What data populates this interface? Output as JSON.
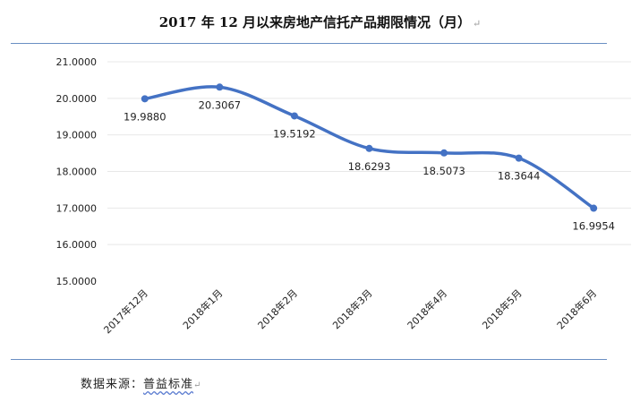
{
  "page": {
    "title": "2017 年 12 月以来房地产信托产品期限情况（月）",
    "para_mark": "↵",
    "source_label": "数据来源：",
    "source_name": "普益标准"
  },
  "colors": {
    "line": "#4472c4",
    "rule": "#6a8fc3"
  },
  "chart_data": {
    "type": "line",
    "title": "2017 年 12 月以来房地产信托产品期限情况（月）",
    "xlabel": "",
    "ylabel": "",
    "categories": [
      "2017年12月",
      "2018年1月",
      "2018年2月",
      "2018年3月",
      "2018年4月",
      "2018年5月",
      "2018年6月"
    ],
    "values": [
      19.988,
      20.3067,
      19.5192,
      18.6293,
      18.5073,
      18.3644,
      16.9954
    ],
    "data_labels": [
      "19.9880",
      "20.3067",
      "19.5192",
      "18.6293",
      "18.5073",
      "18.3644",
      "16.9954"
    ],
    "ylim": [
      15,
      21
    ],
    "yticks": [
      "15.0000",
      "16.0000",
      "17.0000",
      "18.0000",
      "19.0000",
      "20.0000",
      "21.0000"
    ],
    "grid": true,
    "smooth": true,
    "legend": "none"
  }
}
